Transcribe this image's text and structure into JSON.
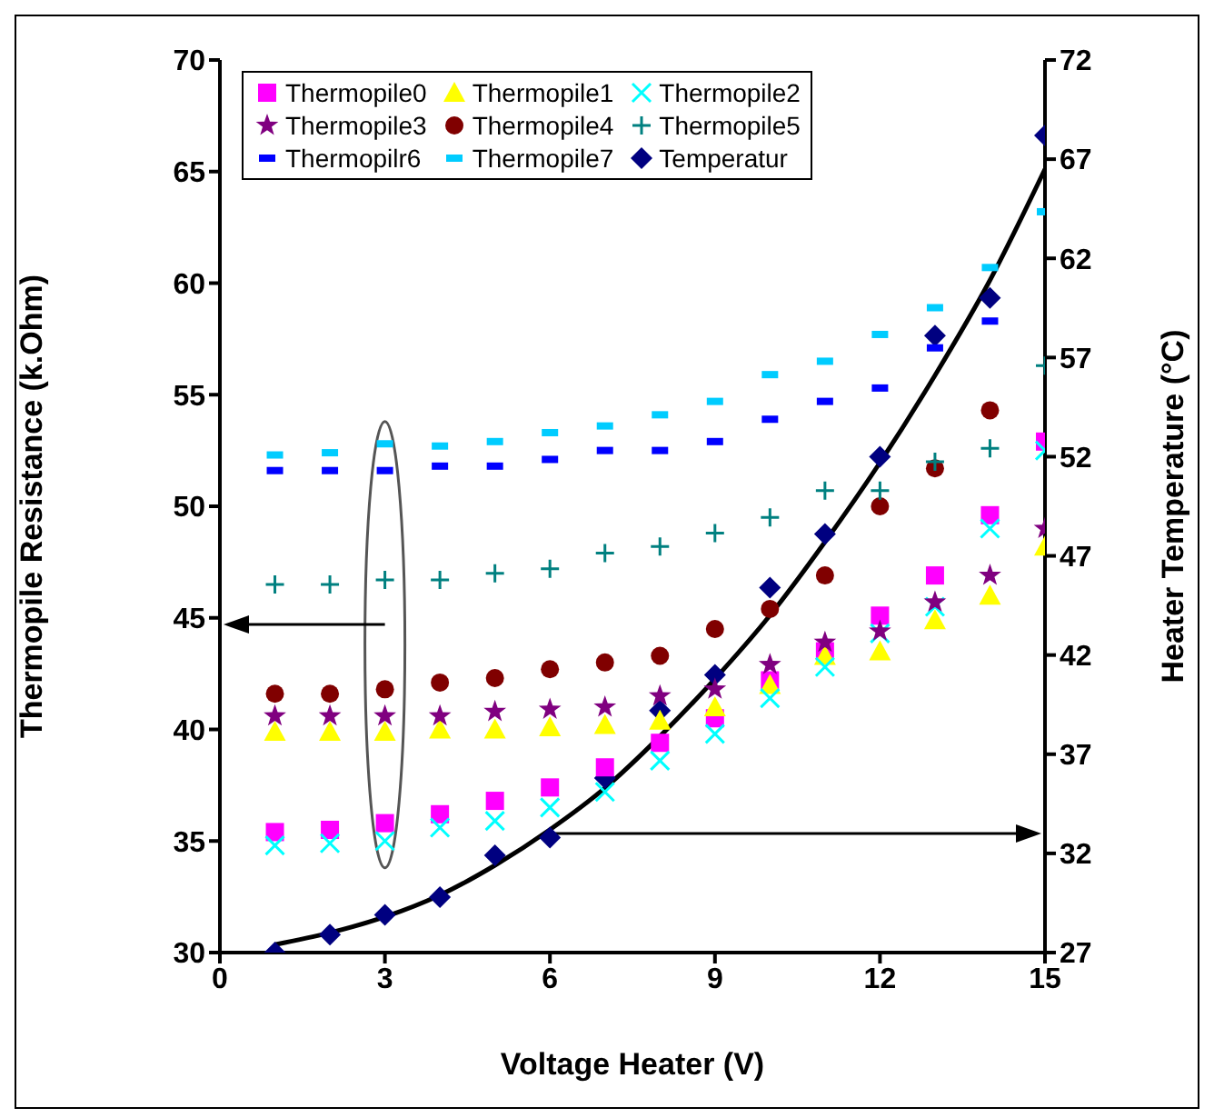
{
  "chart_data": {
    "type": "scatter",
    "x": [
      1,
      2,
      3,
      4,
      5,
      6,
      7,
      8,
      9,
      10,
      11,
      12,
      13,
      14,
      15
    ],
    "xlabel": "Voltage Heater (V)",
    "ylabel": "Thermopile Resistance (k.Ohm)",
    "y2label": "Heater Temperature  (°C)",
    "xlim": [
      0,
      15
    ],
    "xticks": [
      0,
      3,
      6,
      9,
      12,
      15
    ],
    "ylim": [
      30,
      70
    ],
    "yticks": [
      30,
      35,
      40,
      45,
      50,
      55,
      60,
      65,
      70
    ],
    "y2lim": [
      27,
      72
    ],
    "y2ticks": [
      27,
      32,
      37,
      42,
      47,
      52,
      57,
      62,
      67,
      72
    ],
    "legend": "top",
    "series": [
      {
        "name": "Thermopile0",
        "color": "#ff00ff",
        "marker": "square",
        "values": [
          35.4,
          35.5,
          35.8,
          36.2,
          36.8,
          37.4,
          38.3,
          39.4,
          40.5,
          42.2,
          43.5,
          45.1,
          46.9,
          49.6,
          52.9
        ]
      },
      {
        "name": "Thermopile1",
        "color": "#ffff00",
        "marker": "triangle",
        "values": [
          39.9,
          39.9,
          39.9,
          40.0,
          40.0,
          40.1,
          40.2,
          40.4,
          41.0,
          42.0,
          43.3,
          43.5,
          44.9,
          46.0,
          48.2
        ]
      },
      {
        "name": "Thermopile2",
        "color": "#00ffff",
        "marker": "cross",
        "values": [
          34.8,
          34.9,
          35.0,
          35.6,
          35.9,
          36.5,
          37.2,
          38.6,
          39.8,
          41.4,
          42.8,
          44.3,
          45.5,
          49.0,
          52.5
        ]
      },
      {
        "name": "Thermopile3",
        "color": "#800080",
        "marker": "star",
        "values": [
          40.6,
          40.6,
          40.6,
          40.6,
          40.8,
          40.9,
          41.0,
          41.5,
          41.8,
          42.9,
          43.9,
          44.4,
          45.7,
          46.9,
          49.0
        ]
      },
      {
        "name": "Thermopile4",
        "color": "#800000",
        "marker": "circle",
        "values": [
          41.6,
          41.6,
          41.8,
          42.1,
          42.3,
          42.7,
          43.0,
          43.3,
          44.5,
          45.4,
          46.9,
          50.0,
          51.7,
          54.3,
          null
        ]
      },
      {
        "name": "Thermopile5",
        "color": "#008080",
        "marker": "plus",
        "values": [
          46.5,
          46.5,
          46.7,
          46.7,
          47.0,
          47.2,
          47.9,
          48.2,
          48.8,
          49.5,
          50.7,
          50.7,
          52.0,
          52.6,
          56.3
        ]
      },
      {
        "name": "Thermopilr6",
        "color": "#0000ff",
        "values": [
          51.6,
          51.6,
          51.6,
          51.8,
          51.8,
          52.1,
          52.5,
          52.5,
          52.9,
          53.9,
          54.7,
          55.3,
          57.1,
          58.3,
          null
        ]
      },
      {
        "name": "Thermopile7",
        "color": "#00ccff",
        "values": [
          52.3,
          52.4,
          52.8,
          52.7,
          52.9,
          53.3,
          53.6,
          54.1,
          54.7,
          55.9,
          56.5,
          57.7,
          58.9,
          60.7,
          63.2
        ]
      },
      {
        "name": "Temperatur",
        "color": "#000080",
        "marker": "diamond",
        "axis": "y2",
        "values": [
          27.0,
          27.9,
          28.9,
          29.8,
          31.9,
          32.8,
          35.8,
          39.2,
          41.0,
          45.4,
          48.1,
          52.0,
          58.1,
          60.0,
          68.2
        ]
      },
      {
        "type": "line",
        "color": "#000000",
        "axis": "y2",
        "marker": "none",
        "line_style": "solid",
        "values": [
          27.4,
          28.0,
          28.8,
          29.9,
          31.4,
          33.2,
          35.3,
          37.9,
          40.8,
          44.0,
          47.7,
          51.7,
          56.1,
          60.9,
          66.5
        ]
      }
    ]
  }
}
